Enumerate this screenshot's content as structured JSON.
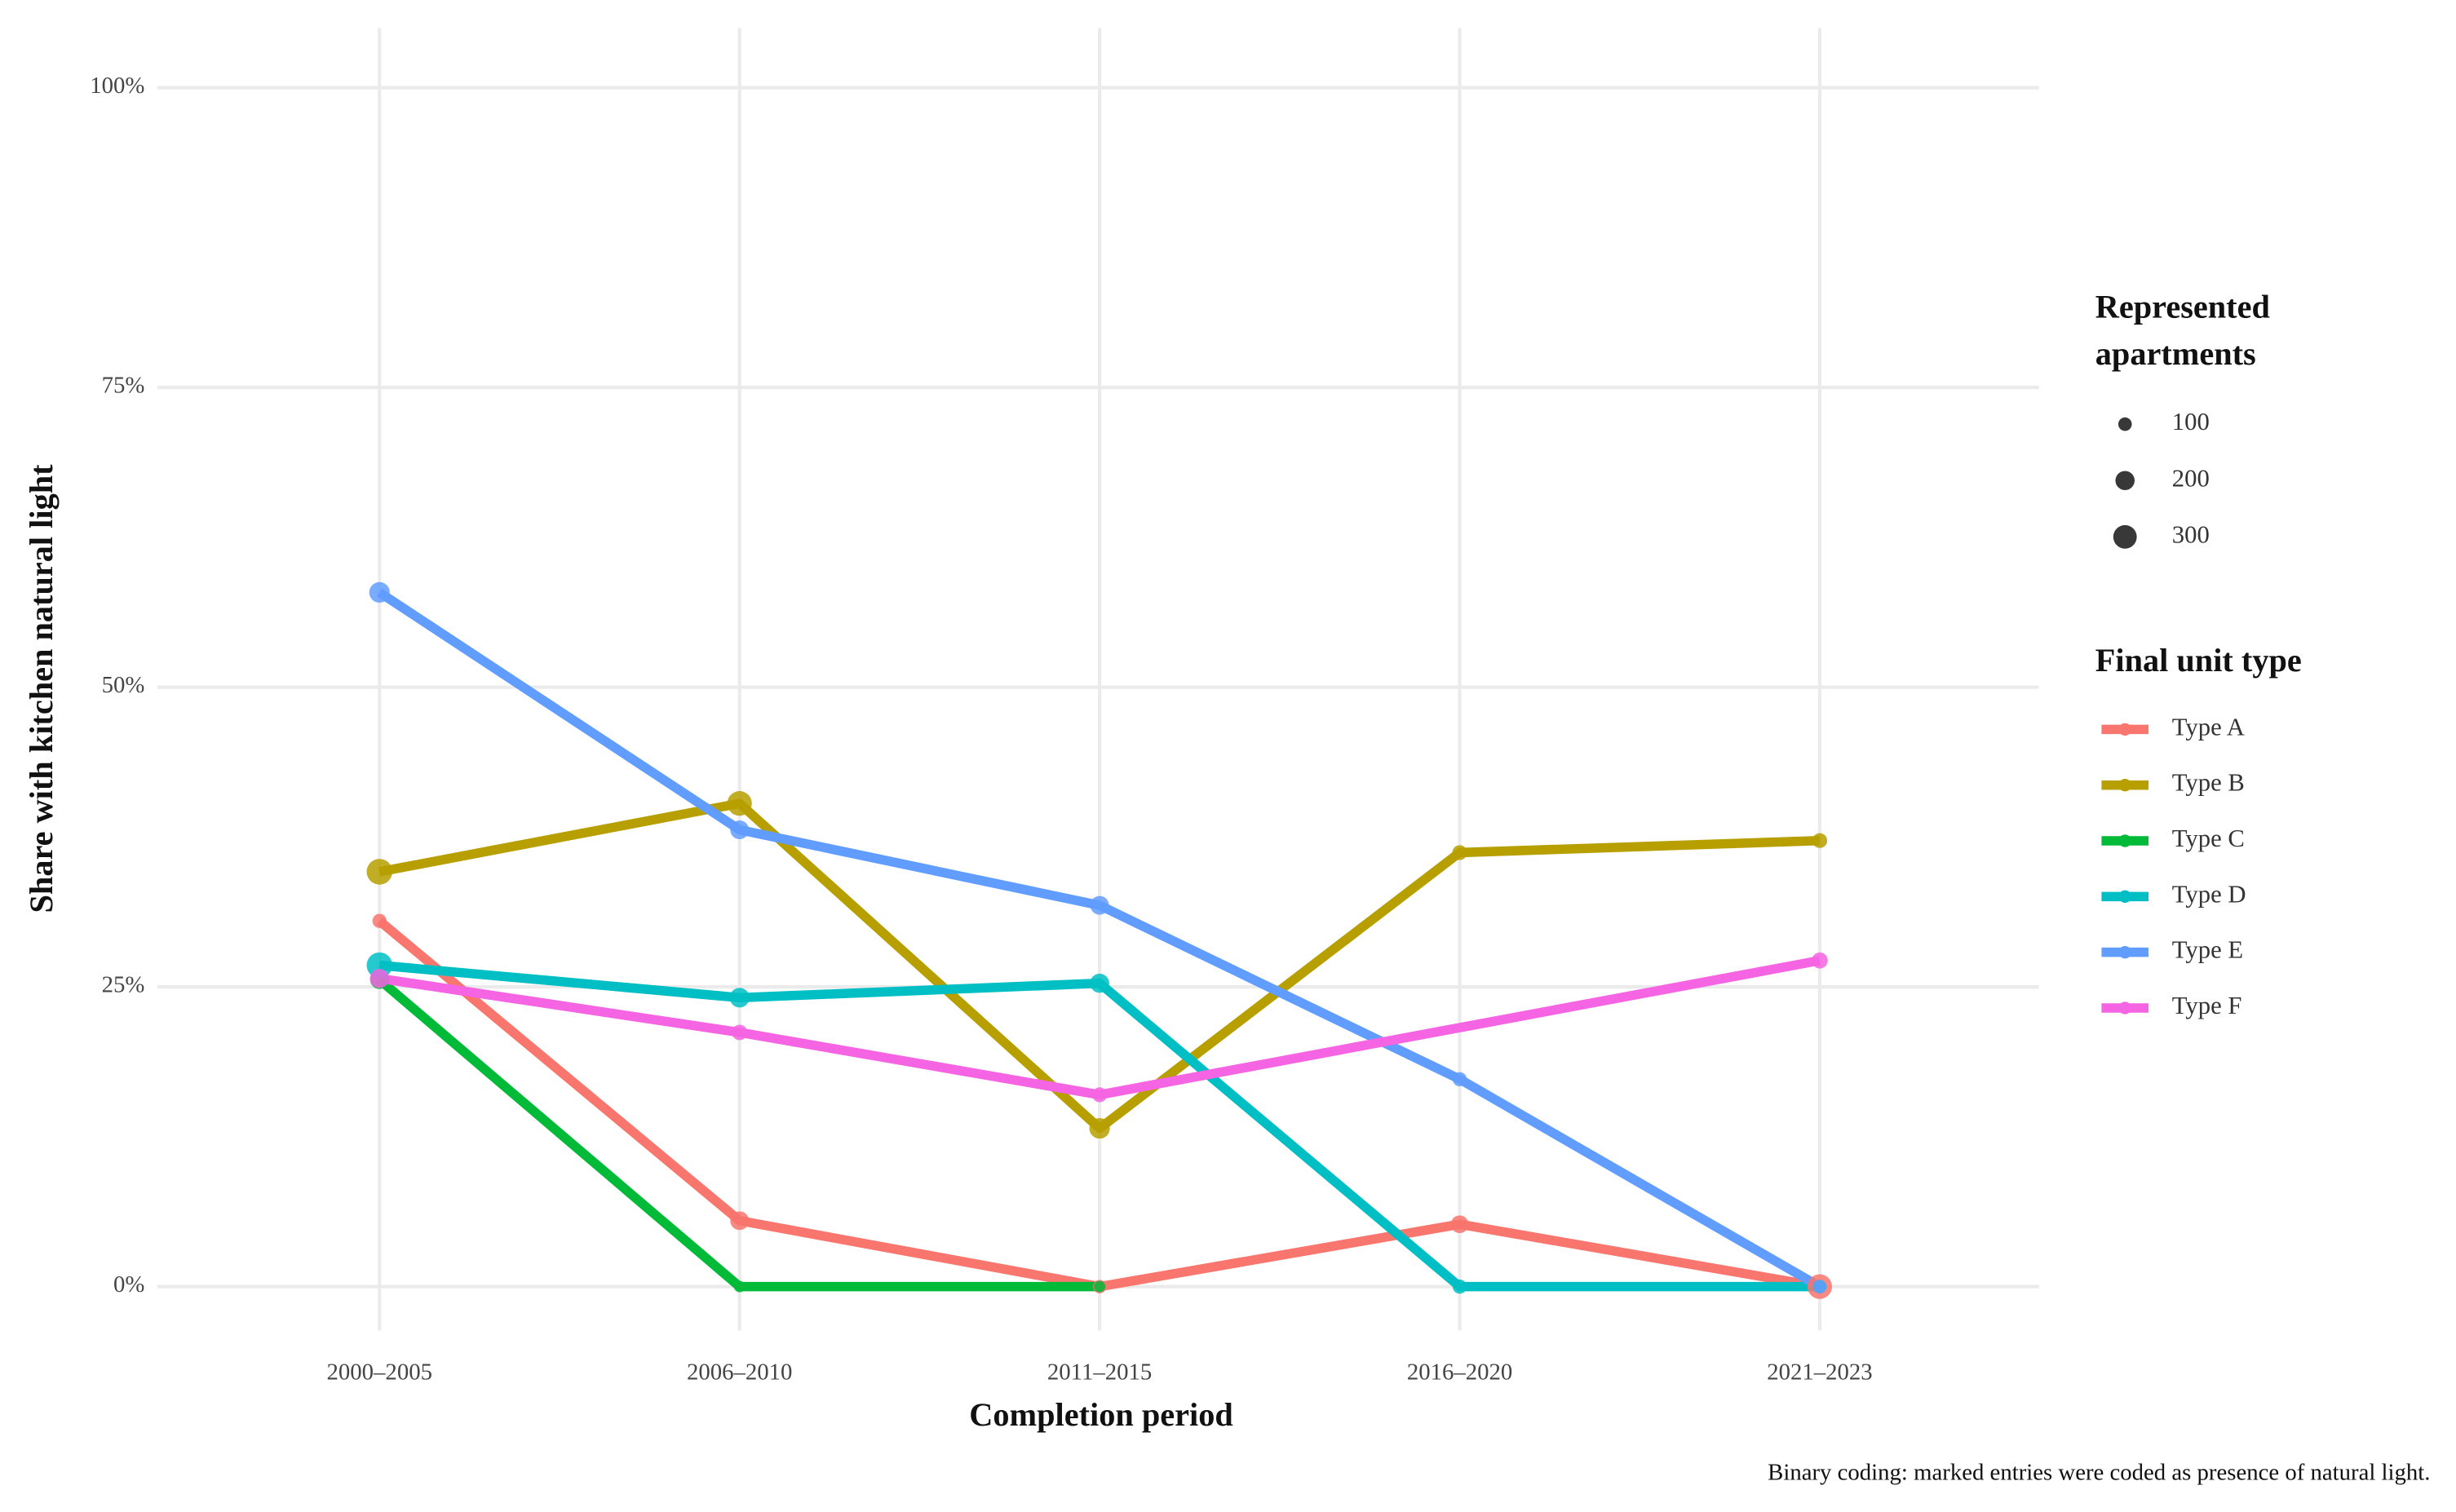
{
  "chart_data": {
    "type": "line",
    "x_label": "Completion period",
    "y_label": "Share with kitchen natural light",
    "caption": "Binary coding: marked entries were coded as presence of natural light.",
    "categories": [
      "2000–2005",
      "2006–2010",
      "2011–2015",
      "2016–2020",
      "2021–2023"
    ],
    "ylim": [
      0,
      100
    ],
    "yticks": [
      {
        "value": 0,
        "label": "0%"
      },
      {
        "value": 25,
        "label": "25%"
      },
      {
        "value": 50,
        "label": "50%"
      },
      {
        "value": 75,
        "label": "75%"
      },
      {
        "value": 100,
        "label": "100%"
      }
    ],
    "grid": true,
    "size_legend_title": [
      "Represented",
      "apartments"
    ],
    "size_legend": [
      100,
      200,
      300
    ],
    "color_legend_title": "Final unit type",
    "series": [
      {
        "name": "Type A",
        "color": "#F8766D",
        "x": [
          "2000–2005",
          "2006–2010",
          "2011–2015",
          "2016–2020",
          "2021–2023"
        ],
        "values": [
          30.5,
          5.5,
          0,
          5.2,
          0
        ],
        "sizes": [
          110,
          190,
          100,
          170,
          330
        ]
      },
      {
        "name": "Type B",
        "color": "#B79F00",
        "x": [
          "2000–2005",
          "2006–2010",
          "2011–2015",
          "2016–2020",
          "2021–2023"
        ],
        "values": [
          34.6,
          40.3,
          13.2,
          36.2,
          37.2
        ],
        "sizes": [
          360,
          330,
          230,
          120,
          120
        ]
      },
      {
        "name": "Type C",
        "color": "#00BA38",
        "x": [
          "2000–2005",
          "2006–2010",
          "2011–2015"
        ],
        "values": [
          25.6,
          0,
          0
        ],
        "sizes": [
          190,
          70,
          70
        ]
      },
      {
        "name": "Type D",
        "color": "#00BFC4",
        "x": [
          "2000–2005",
          "2006–2010",
          "2011–2015",
          "2016–2020",
          "2021–2023"
        ],
        "values": [
          26.8,
          24.1,
          25.3,
          0,
          0
        ],
        "sizes": [
          360,
          210,
          200,
          110,
          100
        ]
      },
      {
        "name": "Type E",
        "color": "#619CFF",
        "x": [
          "2000–2005",
          "2006–2010",
          "2011–2015",
          "2016–2020",
          "2021–2023"
        ],
        "values": [
          57.9,
          38.1,
          31.8,
          17.3,
          0
        ],
        "sizes": [
          230,
          190,
          190,
          110,
          100
        ]
      },
      {
        "name": "Type F",
        "color": "#F564E3",
        "x": [
          "2000–2005",
          "2006–2010",
          "2011–2015",
          "2021–2023"
        ],
        "values": [
          25.7,
          21.2,
          16.0,
          27.2
        ],
        "sizes": [
          200,
          130,
          120,
          140
        ]
      }
    ]
  }
}
